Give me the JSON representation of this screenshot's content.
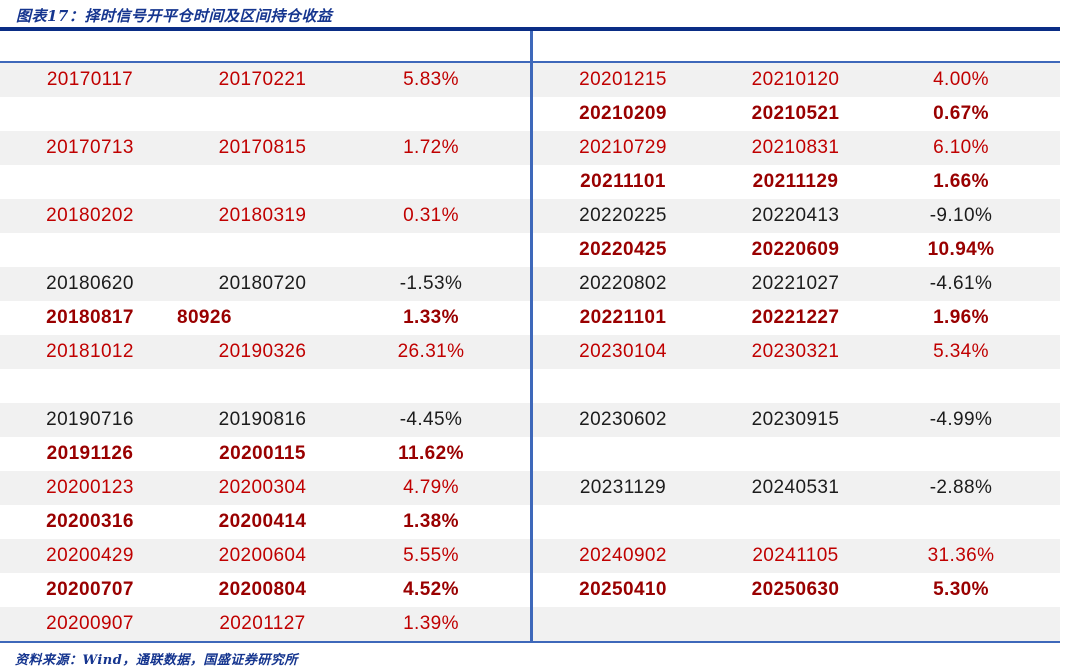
{
  "header": {
    "title": "图表17：择时信号开平仓时间及区间持仓收益"
  },
  "footer": {
    "source": "资料来源：Wind，通联数据，国盛证券研究所"
  },
  "colors": {
    "title_navy": "#15358f",
    "thick_rule": "#0a2d85",
    "thin_rule_blue": "#3e68ba",
    "row_alt_gray": "#f1f1f1",
    "red_text": "#c00000",
    "dark_red_bold_text": "#990000",
    "black_text": "#1c1c1c"
  },
  "table": {
    "rows": [
      {
        "shade": "gray",
        "cells": [
          {
            "text": "20170117",
            "style": "red"
          },
          {
            "text": "20170221",
            "style": "red"
          },
          {
            "text": "5.83%",
            "style": "red"
          },
          {
            "text": "20201215",
            "style": "red"
          },
          {
            "text": "20210120",
            "style": "red"
          },
          {
            "text": "4.00%",
            "style": "red"
          }
        ]
      },
      {
        "shade": "white",
        "cells": [
          {
            "text": ""
          },
          {
            "text": ""
          },
          {
            "text": ""
          },
          {
            "text": "20210209",
            "style": "redBold"
          },
          {
            "text": "20210521",
            "style": "redBold"
          },
          {
            "text": "0.67%",
            "style": "redBold"
          }
        ]
      },
      {
        "shade": "gray",
        "cells": [
          {
            "text": "20170713",
            "style": "red"
          },
          {
            "text": "20170815",
            "style": "red"
          },
          {
            "text": "1.72%",
            "style": "red"
          },
          {
            "text": "20210729",
            "style": "red"
          },
          {
            "text": "20210831",
            "style": "red"
          },
          {
            "text": "6.10%",
            "style": "red"
          }
        ]
      },
      {
        "shade": "white",
        "cells": [
          {
            "text": ""
          },
          {
            "text": ""
          },
          {
            "text": ""
          },
          {
            "text": "20211101",
            "style": "redBold"
          },
          {
            "text": "20211129",
            "style": "redBold"
          },
          {
            "text": "1.66%",
            "style": "redBold"
          }
        ]
      },
      {
        "shade": "gray",
        "cells": [
          {
            "text": "20180202",
            "style": "red"
          },
          {
            "text": "20180319",
            "style": "red"
          },
          {
            "text": "0.31%",
            "style": "red"
          },
          {
            "text": "20220225",
            "style": "black"
          },
          {
            "text": "20220413",
            "style": "black"
          },
          {
            "text": "-9.10%",
            "style": "black"
          }
        ]
      },
      {
        "shade": "white",
        "cells": [
          {
            "text": ""
          },
          {
            "text": ""
          },
          {
            "text": ""
          },
          {
            "text": "20220425",
            "style": "redBold"
          },
          {
            "text": "20220609",
            "style": "redBold"
          },
          {
            "text": "10.94%",
            "style": "redBold"
          }
        ]
      },
      {
        "shade": "gray",
        "cells": [
          {
            "text": "20180620",
            "style": "black"
          },
          {
            "text": "20180720",
            "style": "black"
          },
          {
            "text": "-1.53%",
            "style": "black"
          },
          {
            "text": "20220802",
            "style": "black"
          },
          {
            "text": "20221027",
            "style": "black"
          },
          {
            "text": "-4.61%",
            "style": "black"
          }
        ]
      },
      {
        "shade": "white",
        "cells": [
          {
            "text": "20180817",
            "style": "redBold"
          },
          {
            "text": "80926",
            "style": "redBold",
            "align": "left"
          },
          {
            "text": "1.33%",
            "style": "redBold"
          },
          {
            "text": "20221101",
            "style": "redBold"
          },
          {
            "text": "20221227",
            "style": "redBold"
          },
          {
            "text": "1.96%",
            "style": "redBold"
          }
        ]
      },
      {
        "shade": "gray",
        "cells": [
          {
            "text": "20181012",
            "style": "red"
          },
          {
            "text": "20190326",
            "style": "red"
          },
          {
            "text": "26.31%",
            "style": "red"
          },
          {
            "text": "20230104",
            "style": "red"
          },
          {
            "text": "20230321",
            "style": "red"
          },
          {
            "text": "5.34%",
            "style": "red"
          }
        ]
      },
      {
        "shade": "white",
        "cells": [
          {
            "text": ""
          },
          {
            "text": ""
          },
          {
            "text": ""
          },
          {
            "text": ""
          },
          {
            "text": ""
          },
          {
            "text": ""
          }
        ]
      },
      {
        "shade": "gray",
        "cells": [
          {
            "text": "20190716",
            "style": "black"
          },
          {
            "text": "20190816",
            "style": "black"
          },
          {
            "text": "-4.45%",
            "style": "black"
          },
          {
            "text": "20230602",
            "style": "black"
          },
          {
            "text": "20230915",
            "style": "black"
          },
          {
            "text": "-4.99%",
            "style": "black"
          }
        ]
      },
      {
        "shade": "white",
        "cells": [
          {
            "text": "20191126",
            "style": "redBold"
          },
          {
            "text": "20200115",
            "style": "redBold"
          },
          {
            "text": "11.62%",
            "style": "redBold"
          },
          {
            "text": ""
          },
          {
            "text": ""
          },
          {
            "text": ""
          }
        ]
      },
      {
        "shade": "gray",
        "cells": [
          {
            "text": "20200123",
            "style": "red"
          },
          {
            "text": "20200304",
            "style": "red"
          },
          {
            "text": "4.79%",
            "style": "red"
          },
          {
            "text": "20231129",
            "style": "black"
          },
          {
            "text": "20240531",
            "style": "black"
          },
          {
            "text": "-2.88%",
            "style": "black"
          }
        ]
      },
      {
        "shade": "white",
        "cells": [
          {
            "text": "20200316",
            "style": "redBold"
          },
          {
            "text": "20200414",
            "style": "redBold"
          },
          {
            "text": "1.38%",
            "style": "redBold"
          },
          {
            "text": ""
          },
          {
            "text": ""
          },
          {
            "text": ""
          }
        ]
      },
      {
        "shade": "gray",
        "cells": [
          {
            "text": "20200429",
            "style": "red"
          },
          {
            "text": "20200604",
            "style": "red"
          },
          {
            "text": "5.55%",
            "style": "red"
          },
          {
            "text": "20240902",
            "style": "red"
          },
          {
            "text": "20241105",
            "style": "red"
          },
          {
            "text": "31.36%",
            "style": "red"
          }
        ]
      },
      {
        "shade": "white",
        "cells": [
          {
            "text": "20200707",
            "style": "redBold"
          },
          {
            "text": "20200804",
            "style": "redBold"
          },
          {
            "text": "4.52%",
            "style": "redBold"
          },
          {
            "text": "20250410",
            "style": "redBold"
          },
          {
            "text": "20250630",
            "style": "redBold"
          },
          {
            "text": "5.30%",
            "style": "redBold"
          }
        ]
      },
      {
        "shade": "gray",
        "cells": [
          {
            "text": "20200907",
            "style": "red"
          },
          {
            "text": "20201127",
            "style": "red"
          },
          {
            "text": "1.39%",
            "style": "red"
          },
          {
            "text": ""
          },
          {
            "text": ""
          },
          {
            "text": ""
          }
        ]
      }
    ]
  }
}
